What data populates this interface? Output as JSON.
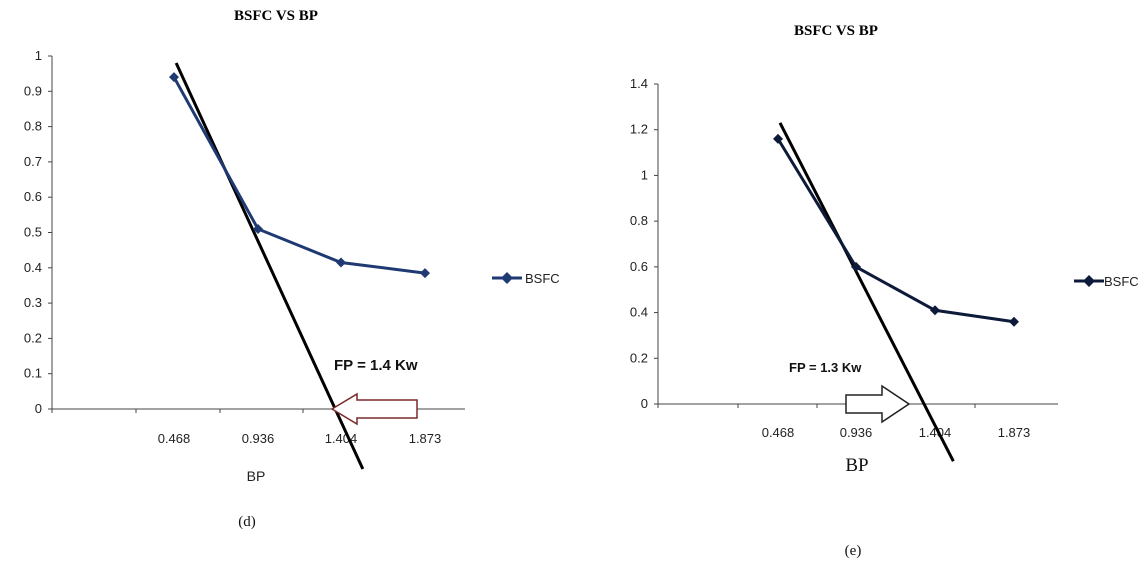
{
  "chart_data": [
    {
      "id": "d",
      "type": "line",
      "title": "BSFC VS BP",
      "xlabel": "BP",
      "ylabel": "",
      "categories": [
        "0.468",
        "0.936",
        "1.404",
        "1.873"
      ],
      "yticks": [
        "0",
        "0.1",
        "0.2",
        "0.3",
        "0.4",
        "0.5",
        "0.6",
        "0.7",
        "0.8",
        "0.9",
        "1"
      ],
      "ylim": [
        0,
        1
      ],
      "grid": false,
      "legend": "right",
      "series": [
        {
          "name": "BSFC",
          "values": [
            0.94,
            0.51,
            0.415,
            0.385
          ],
          "color": "#1f3a73",
          "marker": "diamond"
        }
      ],
      "trendline": {
        "from": [
          0.48,
          0.98
        ],
        "to": [
          1.52,
          -0.17
        ],
        "color": "#000000"
      },
      "annotation": {
        "text": "FP = 1.4 Kw",
        "arrow_direction": "left",
        "arrow_color": "#7a2a2a"
      },
      "caption": "(d)"
    },
    {
      "id": "e",
      "type": "line",
      "title": "BSFC VS BP",
      "xlabel": "BP",
      "ylabel": "",
      "categories": [
        "0.468",
        "0.936",
        "1.404",
        "1.873"
      ],
      "yticks": [
        "0",
        "0.2",
        "0.4",
        "0.6",
        "0.8",
        "1",
        "1.2",
        "1.4"
      ],
      "ylim": [
        0,
        1.4
      ],
      "grid": false,
      "legend": "right",
      "series": [
        {
          "name": "BSFC",
          "values": [
            1.16,
            0.6,
            0.41,
            0.36
          ],
          "color": "#0d1a3a",
          "marker": "diamond"
        }
      ],
      "trendline": {
        "from": [
          0.48,
          1.23
        ],
        "to": [
          1.52,
          -0.25
        ],
        "color": "#000000"
      },
      "annotation": {
        "text": "FP = 1.3 Kw",
        "arrow_direction": "right",
        "arrow_color": "#222222"
      },
      "caption": "(e)"
    }
  ]
}
